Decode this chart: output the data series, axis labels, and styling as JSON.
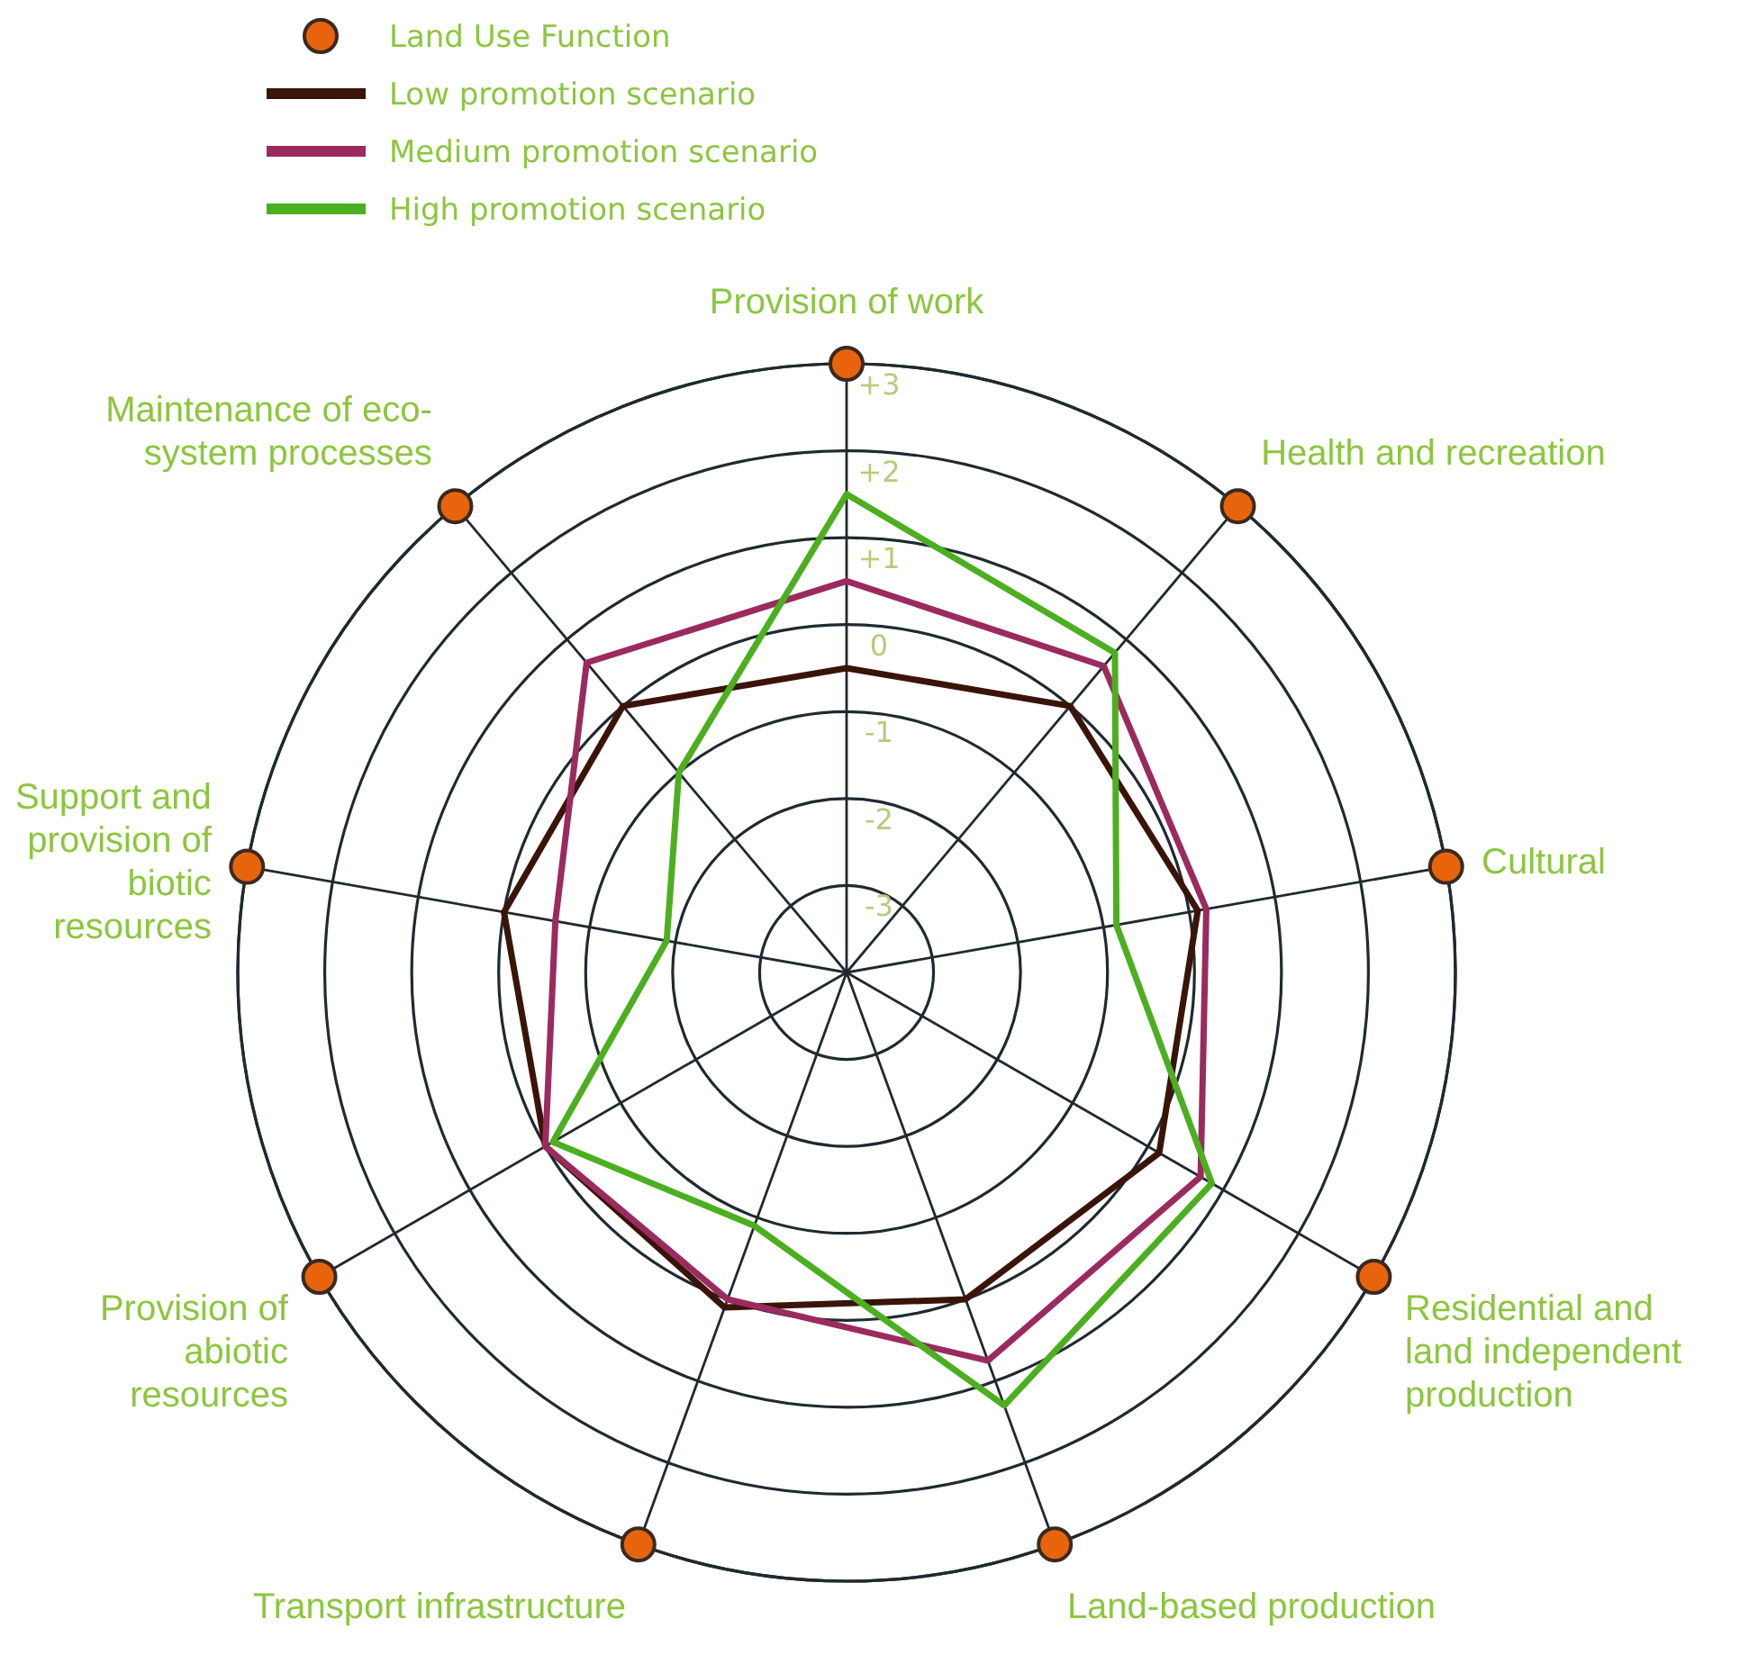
{
  "chart_data": {
    "type": "radar",
    "categories": [
      "Provision of work",
      "Health and recreation",
      "Cultural",
      "Residential and land independent production",
      "Land-based production",
      "Transport infrastructure",
      "Provision of abiotic resources",
      "Support and provision of biotic resources",
      "Maintenance of eco-system processes"
    ],
    "series": [
      {
        "name": "Low promotion scenario",
        "color": "#3a1408",
        "values": [
          -0.5,
          0,
          0.1,
          0.15,
          0,
          0.1,
          0,
          0,
          0
        ]
      },
      {
        "name": "Medium promotion scenario",
        "color": "#9b2b5e",
        "values": [
          0.5,
          0.6,
          0.2,
          0.7,
          0.75,
          0,
          0,
          -0.6,
          0.65
        ]
      },
      {
        "name": "High promotion scenario",
        "color": "#4caf20",
        "values": [
          1.5,
          0.8,
          -0.85,
          0.85,
          1.3,
          -0.9,
          -0.1,
          -1.9,
          -1
        ]
      }
    ],
    "ylim": [
      -4,
      3
    ],
    "yticks": [
      {
        "value": 3,
        "label": "+3"
      },
      {
        "value": 2,
        "label": "+2"
      },
      {
        "value": 1,
        "label": "+1"
      },
      0,
      -1,
      -2,
      -3
    ],
    "grid": true,
    "legend": "top left",
    "marker": "none",
    "annotations": [
      "Land Use Function"
    ]
  }
}
